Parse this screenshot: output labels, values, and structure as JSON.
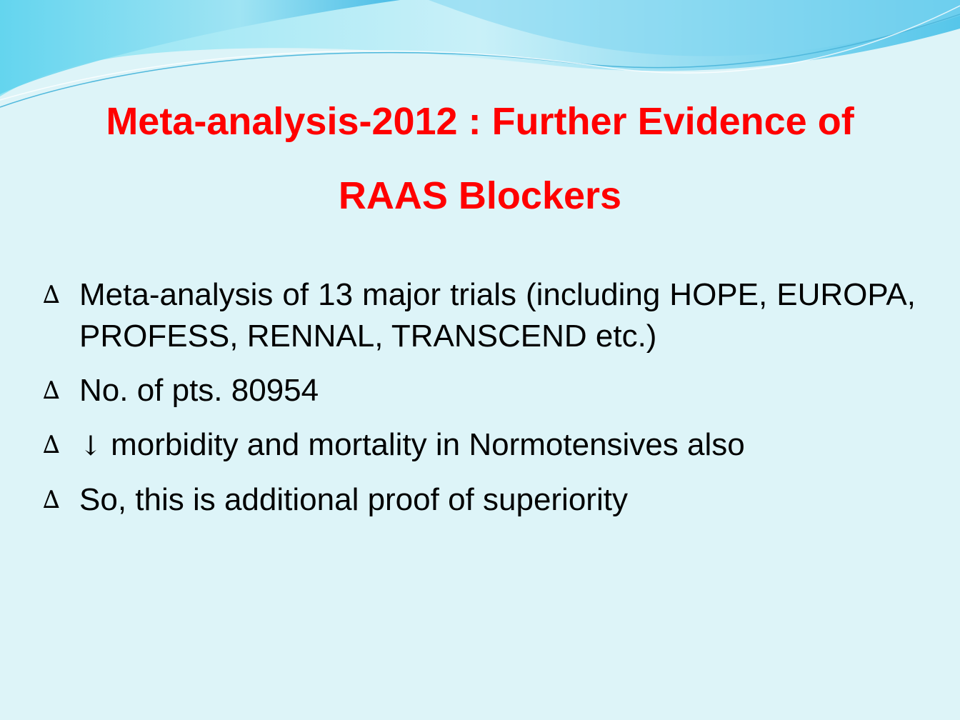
{
  "slide": {
    "title_line1": "Meta-analysis-2012 : Further Evidence of",
    "title_line2": "RAAS Blockers",
    "bullet_marker": "∆",
    "bullets": [
      "Meta-analysis of 13 major trials (including HOPE, EUROPA, PROFESS, RENNAL, TRANSCEND etc.)",
      "No. of pts. 80954",
      "morbidity and mortality in Normotensives also",
      "So, this is additional proof of superiority"
    ],
    "down_arrow": "↓"
  },
  "colors": {
    "background": "#ddf4f8",
    "title": "#ff0000",
    "text": "#000000",
    "wave_dark": "#45bfe6",
    "wave_light": "#a8e4f2"
  }
}
